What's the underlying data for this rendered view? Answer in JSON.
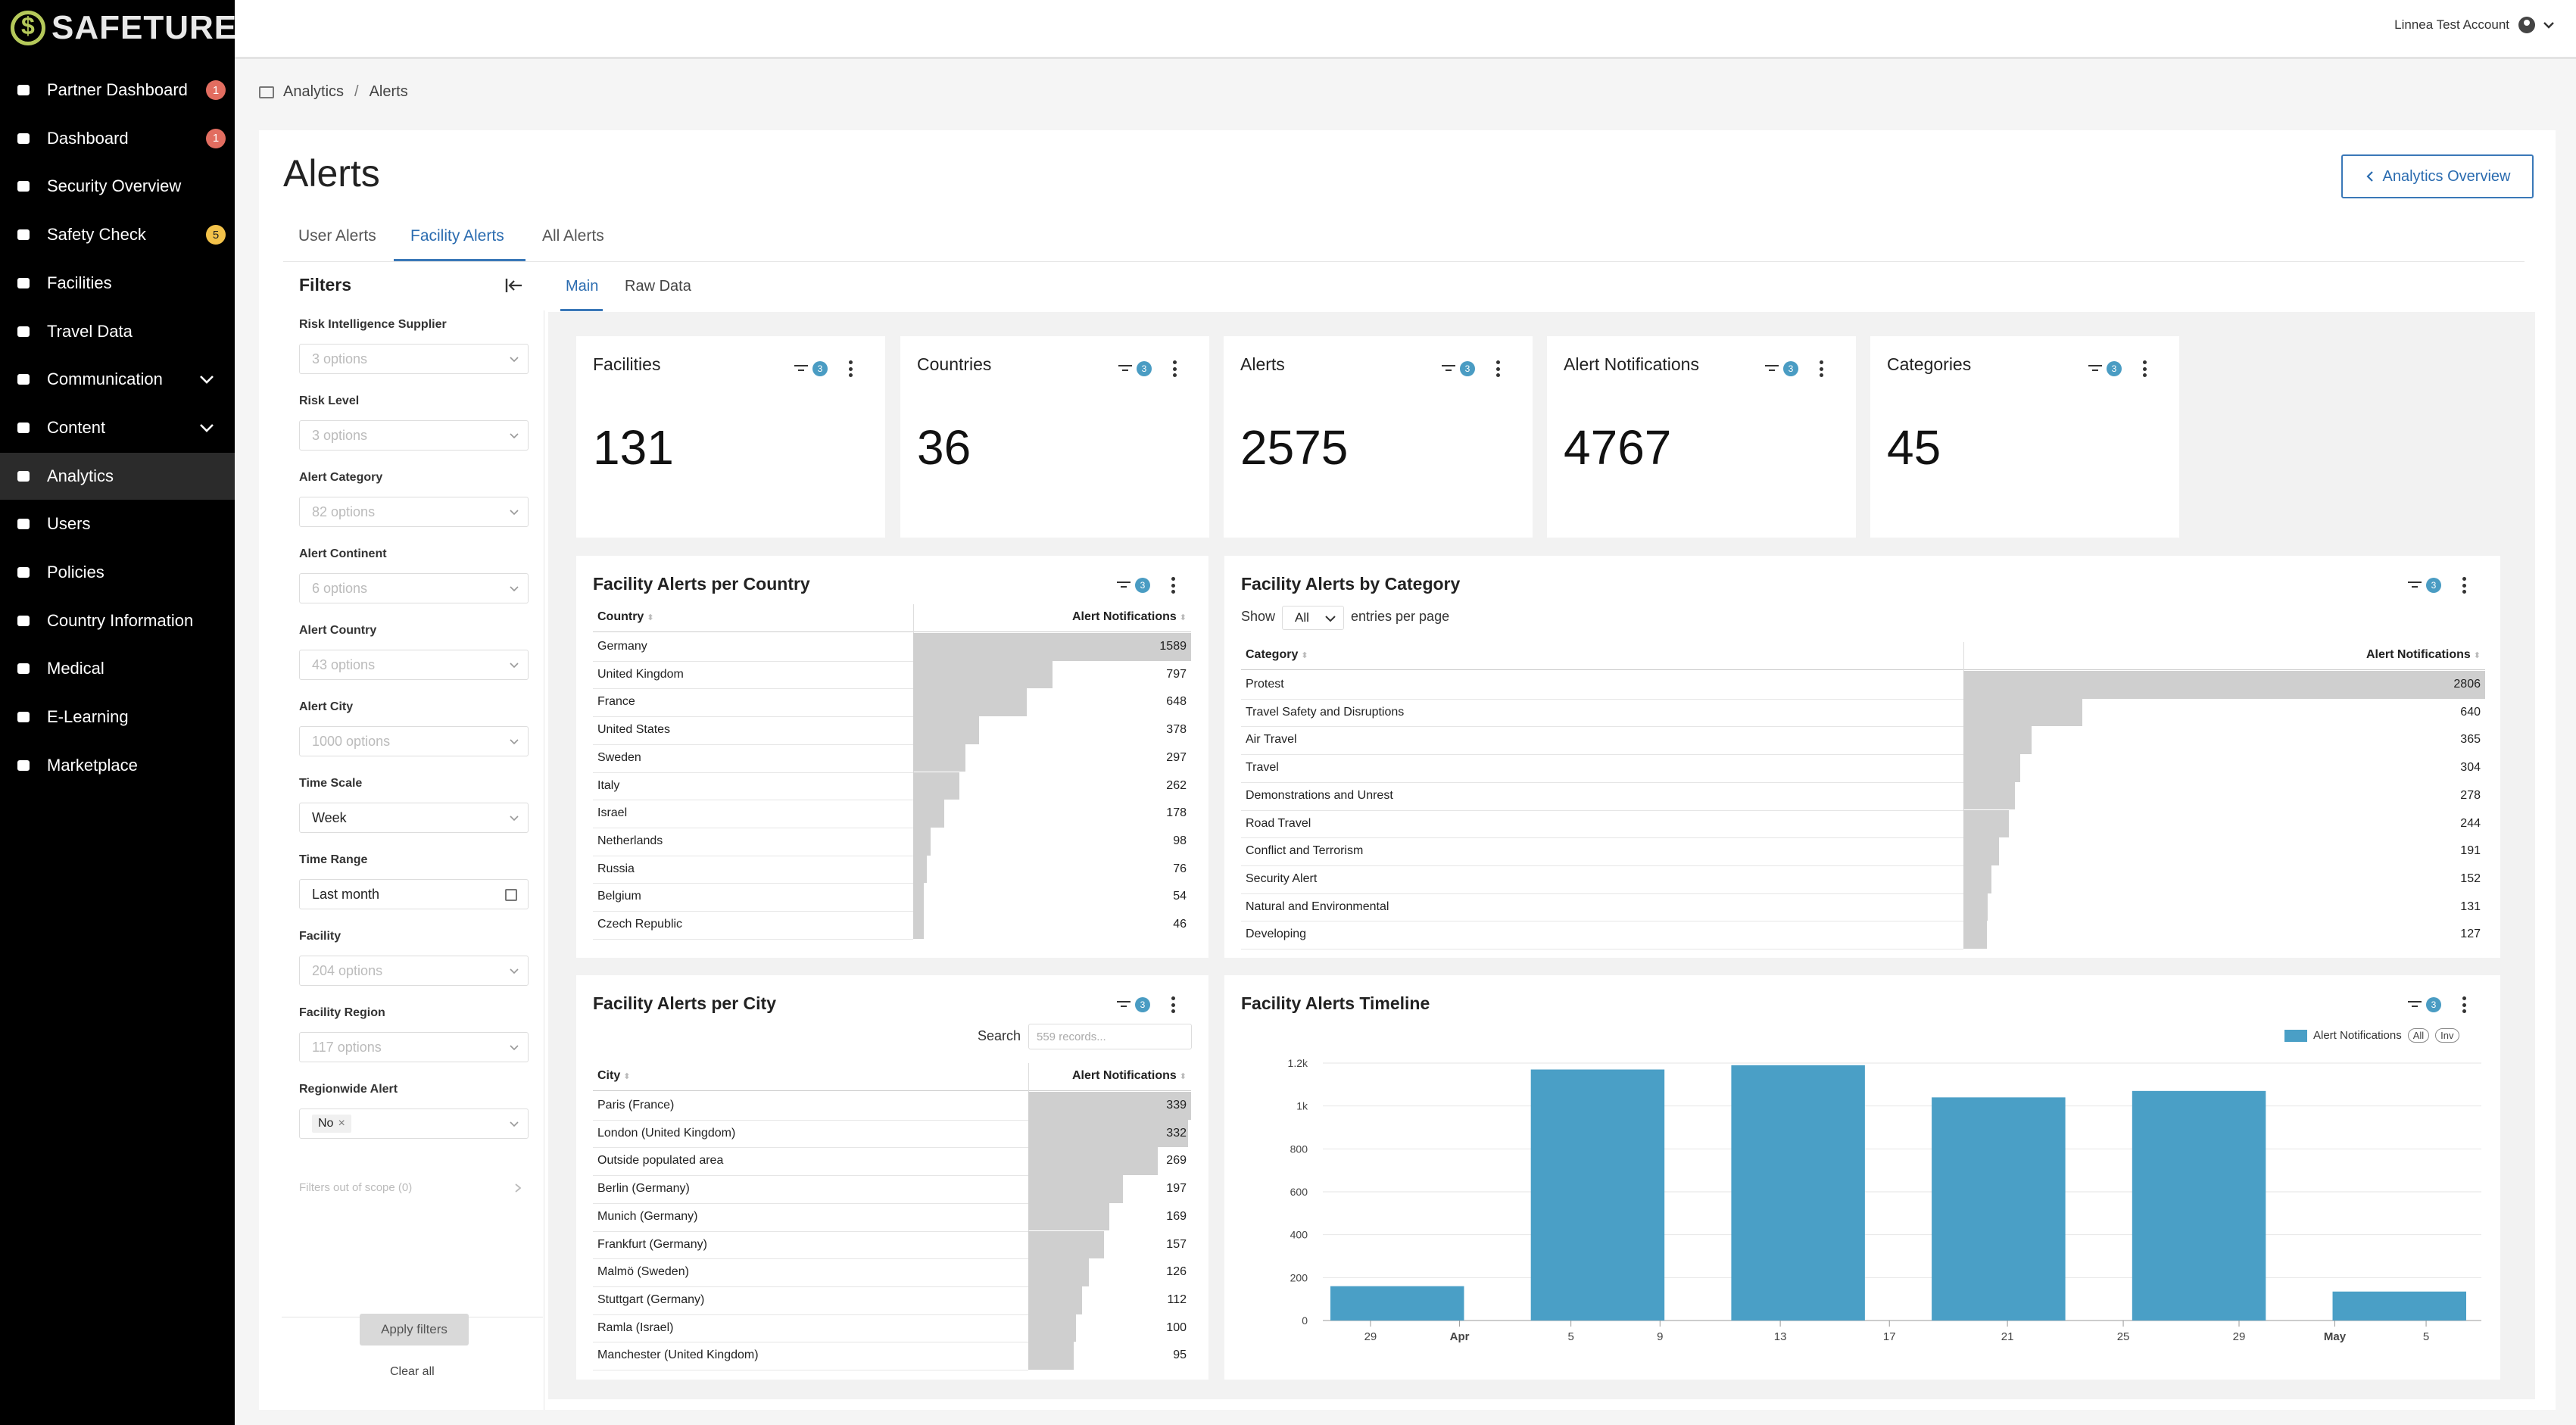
{
  "brand": {
    "name": "SAFETURE",
    "reg": "®"
  },
  "sidebar": {
    "items": [
      {
        "label": "Partner Dashboard",
        "badge": "1",
        "badge_color": "#e26d60",
        "icon": "handshake-icon"
      },
      {
        "label": "Dashboard",
        "badge": "1",
        "badge_color": "#e26d60",
        "icon": "speedometer-icon"
      },
      {
        "label": "Security Overview",
        "icon": "globe-icon"
      },
      {
        "label": "Safety Check",
        "badge": "5",
        "badge_color": "#f3c24a",
        "icon": "checkbox-icon"
      },
      {
        "label": "Facilities",
        "icon": "building-icon"
      },
      {
        "label": "Travel Data",
        "icon": "plane-icon"
      },
      {
        "label": "Communication",
        "icon": "chat-icon",
        "expandable": true
      },
      {
        "label": "Content",
        "icon": "pencil-icon",
        "expandable": true
      },
      {
        "label": "Analytics",
        "icon": "chart-icon",
        "active": true
      },
      {
        "label": "Users",
        "icon": "user-icon"
      },
      {
        "label": "Policies",
        "icon": "id-card-icon"
      },
      {
        "label": "Country Information",
        "icon": "flag-icon"
      },
      {
        "label": "Medical",
        "icon": "medkit-icon"
      },
      {
        "label": "E-Learning",
        "icon": "graduation-cap-icon"
      },
      {
        "label": "Marketplace",
        "icon": "puzzle-icon"
      }
    ]
  },
  "header": {
    "user": "Linnea Test Account"
  },
  "breadcrumb": {
    "root": "Analytics",
    "separator": "/",
    "current": "Alerts"
  },
  "page": {
    "title": "Alerts",
    "overview_button": "Analytics Overview"
  },
  "tabs": [
    "User Alerts",
    "Facility Alerts",
    "All Alerts"
  ],
  "active_tab": "Facility Alerts",
  "subtabs": [
    "Main",
    "Raw Data"
  ],
  "filters": {
    "title": "Filters",
    "fields": [
      {
        "label": "Risk Intelligence Supplier",
        "value": "3 options"
      },
      {
        "label": "Risk Level",
        "value": "3 options"
      },
      {
        "label": "Alert Category",
        "value": "82 options"
      },
      {
        "label": "Alert Continent",
        "value": "6 options"
      },
      {
        "label": "Alert Country",
        "value": "43 options"
      },
      {
        "label": "Alert City",
        "value": "1000 options"
      },
      {
        "label": "Time Scale",
        "value": "Week"
      },
      {
        "label": "Time Range",
        "value": "Last month"
      },
      {
        "label": "Facility",
        "value": "204 options"
      },
      {
        "label": "Facility Region",
        "value": "117 options"
      },
      {
        "label": "Regionwide Alert",
        "value": "No"
      }
    ],
    "out_of_scope": "Filters out of scope (0)",
    "apply": "Apply filters",
    "clear": "Clear all"
  },
  "kpis": [
    {
      "title": "Facilities",
      "value": "131",
      "filter_count": "3"
    },
    {
      "title": "Countries",
      "value": "36",
      "filter_count": "3"
    },
    {
      "title": "Alerts",
      "value": "2575",
      "filter_count": "3"
    },
    {
      "title": "Alert Notifications",
      "value": "4767",
      "filter_count": "3"
    },
    {
      "title": "Categories",
      "value": "45",
      "filter_count": "3"
    }
  ],
  "per_country": {
    "title": "Facility Alerts per Country",
    "filter_count": "3",
    "col1": "Country",
    "col2": "Alert Notifications",
    "rows": [
      {
        "name": "Germany",
        "value": 1589
      },
      {
        "name": "United Kingdom",
        "value": 797
      },
      {
        "name": "France",
        "value": 648
      },
      {
        "name": "United States",
        "value": 378
      },
      {
        "name": "Sweden",
        "value": 297
      },
      {
        "name": "Italy",
        "value": 262
      },
      {
        "name": "Israel",
        "value": 178
      },
      {
        "name": "Netherlands",
        "value": 98
      },
      {
        "name": "Russia",
        "value": 76
      },
      {
        "name": "Belgium",
        "value": 54
      },
      {
        "name": "Czech Republic",
        "value": 46
      }
    ]
  },
  "by_category": {
    "title": "Facility Alerts by Category",
    "filter_count": "3",
    "show": "Show",
    "show_value": "All",
    "entries": "entries per page",
    "col1": "Category",
    "col2": "Alert Notifications",
    "rows": [
      {
        "name": "Protest",
        "value": 2806
      },
      {
        "name": "Travel Safety and Disruptions",
        "value": 640
      },
      {
        "name": "Air Travel",
        "value": 365
      },
      {
        "name": "Travel",
        "value": 304
      },
      {
        "name": "Demonstrations and Unrest",
        "value": 278
      },
      {
        "name": "Road Travel",
        "value": 244
      },
      {
        "name": "Conflict and Terrorism",
        "value": 191
      },
      {
        "name": "Security Alert",
        "value": 152
      },
      {
        "name": "Natural and Environmental",
        "value": 131
      },
      {
        "name": "Developing",
        "value": 127
      }
    ]
  },
  "per_city": {
    "title": "Facility Alerts per City",
    "filter_count": "3",
    "search_label": "Search",
    "search_placeholder": "559 records...",
    "col1": "City",
    "col2": "Alert Notifications",
    "rows": [
      {
        "name": "Paris (France)",
        "value": 339
      },
      {
        "name": "London (United Kingdom)",
        "value": 332
      },
      {
        "name": "Outside populated area",
        "value": 269
      },
      {
        "name": "Berlin (Germany)",
        "value": 197
      },
      {
        "name": "Munich (Germany)",
        "value": 169
      },
      {
        "name": "Frankfurt (Germany)",
        "value": 157
      },
      {
        "name": "Malmö (Sweden)",
        "value": 126
      },
      {
        "name": "Stuttgart (Germany)",
        "value": 112
      },
      {
        "name": "Ramla (Israel)",
        "value": 100
      },
      {
        "name": "Manchester (United Kingdom)",
        "value": 95
      }
    ]
  },
  "timeline": {
    "title": "Facility Alerts Timeline",
    "filter_count": "3",
    "legend_all": "All",
    "legend_inv": "Inv"
  },
  "chart_data": {
    "type": "bar",
    "title": "Facility Alerts Timeline",
    "series": [
      {
        "name": "Alert Notifications",
        "color": "#4a9fc6"
      }
    ],
    "bars": [
      {
        "x_start": 0,
        "x_end": 6,
        "value": 160
      },
      {
        "x_start": 9,
        "x_end": 15,
        "value": 1170
      },
      {
        "x_start": 18,
        "x_end": 24,
        "value": 1190
      },
      {
        "x_start": 27,
        "x_end": 33,
        "value": 1040
      },
      {
        "x_start": 36,
        "x_end": 42,
        "value": 1070
      },
      {
        "x_start": 45,
        "x_end": 51,
        "value": 135
      }
    ],
    "x_domain": [
      0,
      51
    ],
    "x_ticks": [
      {
        "x": 1.8,
        "label": "29"
      },
      {
        "x": 5.8,
        "label": "Apr",
        "bold": true
      },
      {
        "x": 10.8,
        "label": "5"
      },
      {
        "x": 14.8,
        "label": "9"
      },
      {
        "x": 20.2,
        "label": "13"
      },
      {
        "x": 25.1,
        "label": "17"
      },
      {
        "x": 30.4,
        "label": "21"
      },
      {
        "x": 35.6,
        "label": "25"
      },
      {
        "x": 40.8,
        "label": "29"
      },
      {
        "x": 45.1,
        "label": "May",
        "bold": true
      },
      {
        "x": 49.2,
        "label": "5"
      }
    ],
    "y_ticks": [
      {
        "v": 0,
        "label": "0"
      },
      {
        "v": 200,
        "label": "200"
      },
      {
        "v": 400,
        "label": "400"
      },
      {
        "v": 600,
        "label": "600"
      },
      {
        "v": 800,
        "label": "800"
      },
      {
        "v": 1000,
        "label": "1k"
      },
      {
        "v": 1200,
        "label": "1.2k"
      }
    ],
    "ylim": [
      0,
      1200
    ]
  }
}
